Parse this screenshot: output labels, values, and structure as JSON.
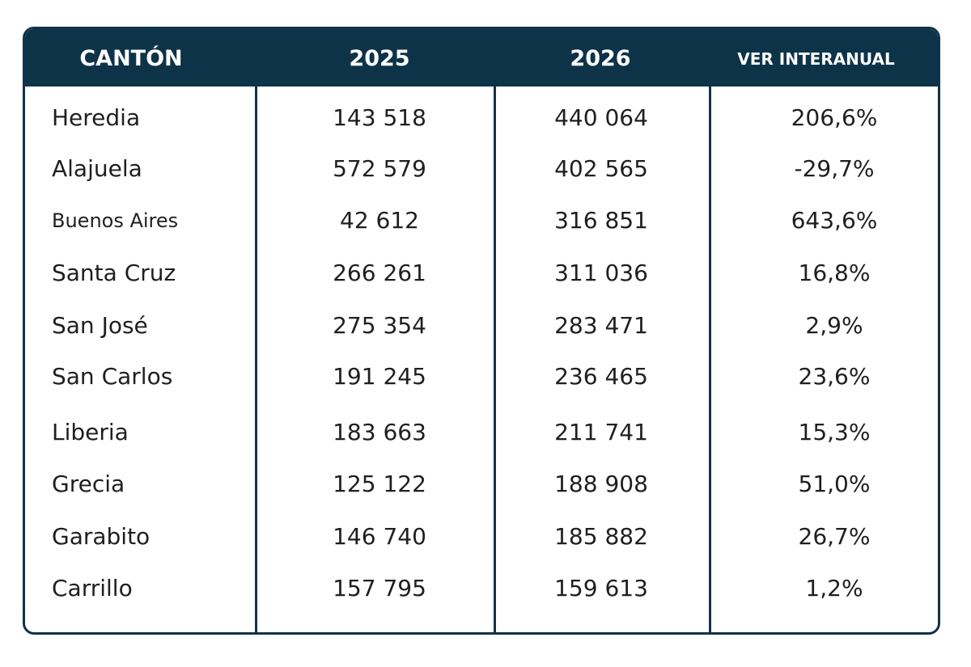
{
  "chart_data": {
    "type": "table",
    "columns": [
      "CANTÓN",
      "2025",
      "2026",
      "VER INTERANUAL"
    ],
    "rows": [
      [
        "Heredia",
        "143 518",
        "440 064",
        "206,6%"
      ],
      [
        "Alajuela",
        "572 579",
        "402 565",
        "-29,7%"
      ],
      [
        "Buenos Aires",
        "42 612",
        "316 851",
        "643,6%"
      ],
      [
        "Santa Cruz",
        "266 261",
        "311 036",
        "16,8%"
      ],
      [
        "San José",
        "275 354",
        "283 471",
        "2,9%"
      ],
      [
        "San Carlos",
        "191 245",
        "236 465",
        "23,6%"
      ],
      [
        "Liberia",
        "183 663",
        "211 741",
        "15,3%"
      ],
      [
        "Grecia",
        "125 122",
        "188 908",
        "51,0%"
      ],
      [
        "Garabito",
        "146 740",
        "185 882",
        "26,7%"
      ],
      [
        "Carrillo",
        "157 795",
        "159 613",
        "1,2%"
      ]
    ]
  },
  "colors": {
    "header_background": "#0d3349",
    "header_text": "#ffffff",
    "border": "#12324a",
    "body_text": "#1f1f1f"
  }
}
